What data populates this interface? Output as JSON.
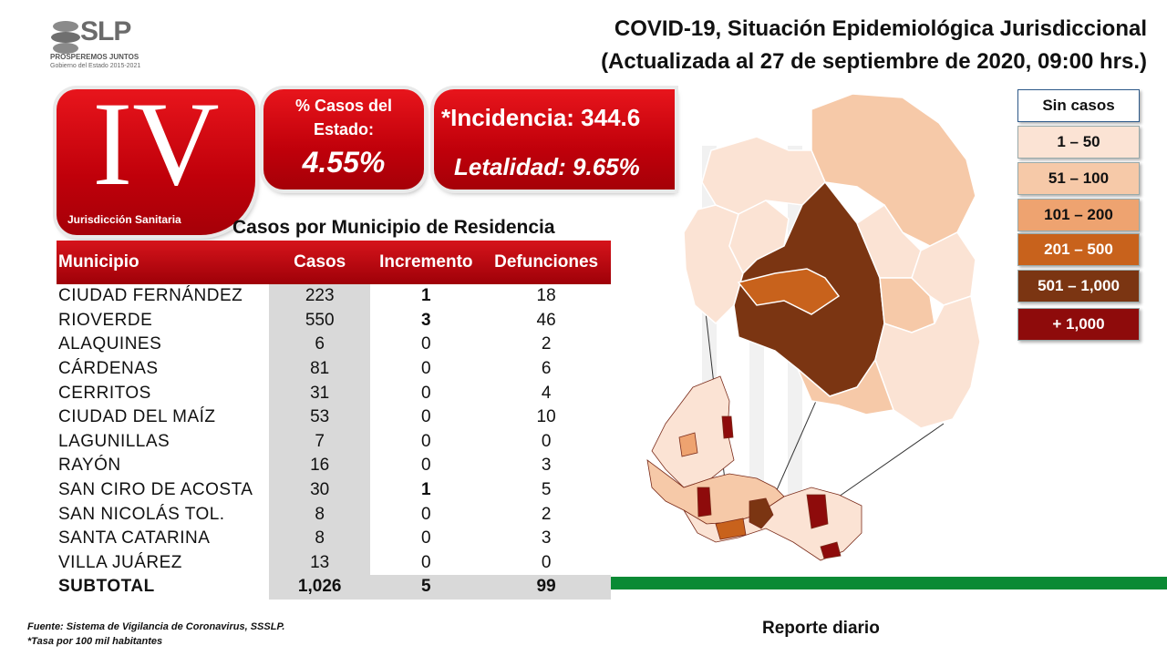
{
  "header": {
    "logo_text": "SLP",
    "logo_tagline": "PROSPEREMOS JUNTOS",
    "logo_gov": "Gobierno del Estado 2015-2021",
    "title_line1": "COVID-19, Situación Epidemiológica Jurisdiccional",
    "title_line2": "(Actualizada al 27 de septiembre de 2020, 09:00 hrs.)"
  },
  "jurisdiction": {
    "number": "IV",
    "label": "Jurisdicción Sanitaria"
  },
  "state_share": {
    "title": "% Casos del Estado:",
    "value": "4.55%"
  },
  "rates": {
    "incidence": "*Incidencia: 344.6",
    "lethality": "Letalidad: 9.65%"
  },
  "table": {
    "title": "Casos por Municipio  de Residencia",
    "headers": [
      "Municipio",
      "Casos",
      "Incremento",
      "Defunciones"
    ],
    "rows": [
      {
        "municipio": "CIUDAD FERNÁNDEZ",
        "casos": "223",
        "incremento": "1",
        "defunciones": "18"
      },
      {
        "municipio": "RIOVERDE",
        "casos": "550",
        "incremento": "3",
        "defunciones": "46"
      },
      {
        "municipio": "ALAQUINES",
        "casos": "6",
        "incremento": "0",
        "defunciones": "2"
      },
      {
        "municipio": "CÁRDENAS",
        "casos": "81",
        "incremento": "0",
        "defunciones": "6"
      },
      {
        "municipio": "CERRITOS",
        "casos": "31",
        "incremento": "0",
        "defunciones": "4"
      },
      {
        "municipio": "CIUDAD DEL MAÍZ",
        "casos": "53",
        "incremento": "0",
        "defunciones": "10"
      },
      {
        "municipio": "LAGUNILLAS",
        "casos": "7",
        "incremento": "0",
        "defunciones": "0"
      },
      {
        "municipio": "RAYÓN",
        "casos": "16",
        "incremento": "0",
        "defunciones": "3"
      },
      {
        "municipio": "SAN CIRO DE ACOSTA",
        "casos": "30",
        "incremento": "1",
        "defunciones": "5"
      },
      {
        "municipio": "SAN NICOLÁS TOL.",
        "casos": "8",
        "incremento": "0",
        "defunciones": "2"
      },
      {
        "municipio": "SANTA CATARINA",
        "casos": "8",
        "incremento": "0",
        "defunciones": "3"
      },
      {
        "municipio": "VILLA JUÁREZ",
        "casos": "13",
        "incremento": "0",
        "defunciones": "0"
      }
    ],
    "subtotal": {
      "municipio": "SUBTOTAL",
      "casos": "1,026",
      "incremento": "5",
      "defunciones": "99"
    }
  },
  "legend": [
    {
      "label": "Sin casos",
      "color": "#ffffff",
      "text_color": "#111111"
    },
    {
      "label": "1 – 50",
      "color": "#fbe3d4",
      "text_color": "#111111"
    },
    {
      "label": "51 – 100",
      "color": "#f6c9a8",
      "text_color": "#111111"
    },
    {
      "label": "101 – 200",
      "color": "#eea370",
      "text_color": "#111111"
    },
    {
      "label": "201 – 500",
      "color": "#c8621c",
      "text_color": "#ffffff"
    },
    {
      "label": "501 – 1,000",
      "color": "#7b3512",
      "text_color": "#ffffff"
    },
    {
      "label": "+ 1,000",
      "color": "#8e0b0b",
      "text_color": "#ffffff"
    }
  ],
  "footer": {
    "source": "Fuente: Sistema de Vigilancia de Coronavirus, SSSLP.",
    "rate_note": "*Tasa por 100 mil habitantes",
    "report": "Reporte diario"
  }
}
